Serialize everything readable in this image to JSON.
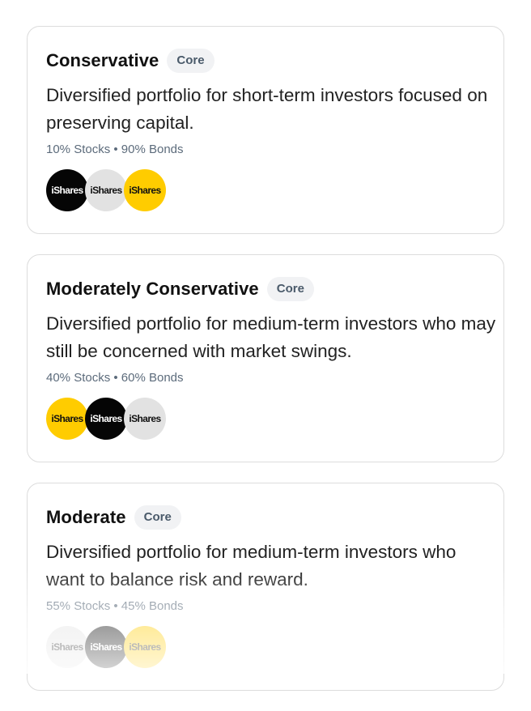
{
  "portfolios": [
    {
      "title": "Conservative",
      "badge": "Core",
      "description": "Diversified portfolio for short-term investors focused on preserving capital.",
      "allocation": "10% Stocks • 90% Bonds",
      "logos": [
        {
          "label": "iShares",
          "color": "#050505"
        },
        {
          "label": "iShares",
          "color": "#e2e2e2"
        },
        {
          "label": "iShares",
          "color": "#ffcc00"
        }
      ]
    },
    {
      "title": "Moderately Conservative",
      "badge": "Core",
      "description": "Diversified portfolio for medium-term investors who may still be concerned with market swings.",
      "allocation": "40% Stocks • 60% Bonds",
      "logos": [
        {
          "label": "iShares",
          "color": "#ffcc00"
        },
        {
          "label": "iShares",
          "color": "#050505"
        },
        {
          "label": "iShares",
          "color": "#e2e2e2"
        }
      ]
    },
    {
      "title": "Moderate",
      "badge": "Core",
      "description": "Diversified portfolio for medium-term investors who want to balance risk and reward.",
      "allocation": "55% Stocks • 45% Bonds",
      "logos": [
        {
          "label": "iShares",
          "color": "#e2e2e2"
        },
        {
          "label": "iShares",
          "color": "#050505"
        },
        {
          "label": "iShares",
          "color": "#ffcc00"
        }
      ]
    }
  ]
}
